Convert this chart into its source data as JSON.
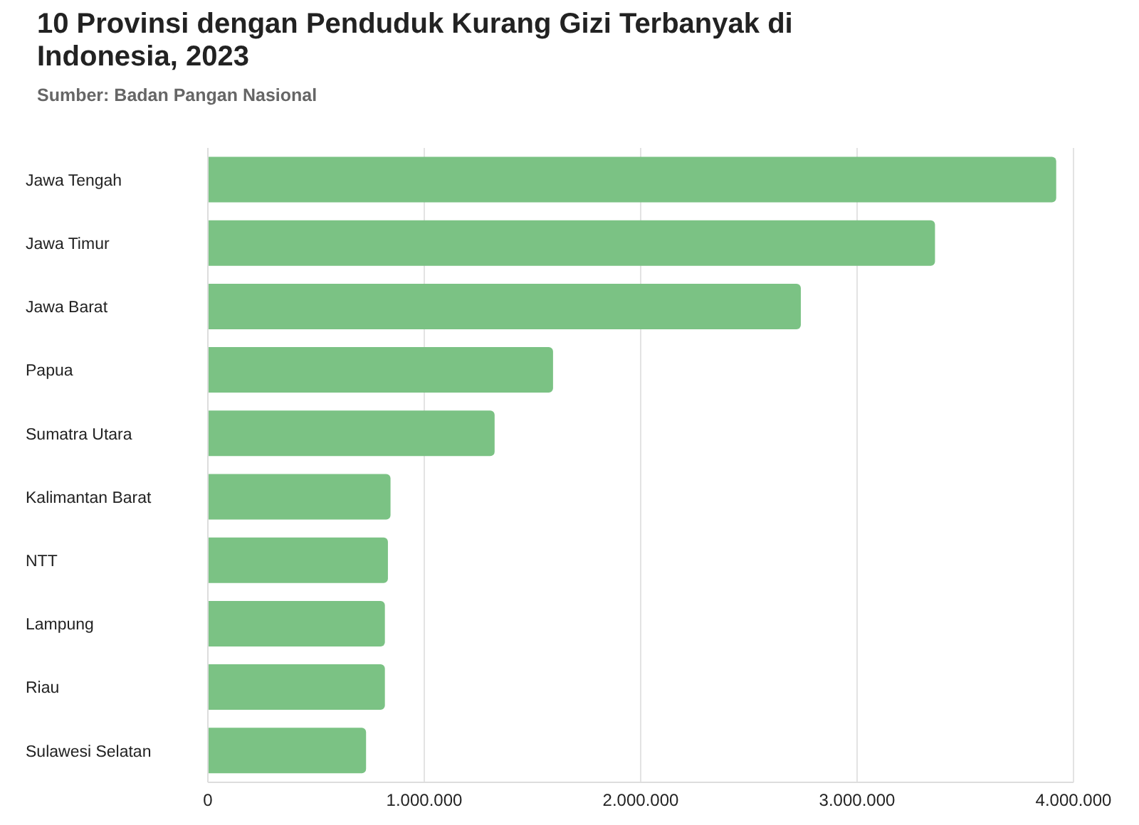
{
  "chart_data": {
    "type": "bar",
    "orientation": "horizontal",
    "title": "10 Provinsi dengan Penduduk Kurang Gizi Terbanyak di Indonesia, 2023",
    "subtitle": "Sumber: Badan Pangan Nasional",
    "categories": [
      "Jawa Tengah",
      "Jawa Timur",
      "Jawa Barat",
      "Papua",
      "Sumatra Utara",
      "Kalimantan Barat",
      "NTT",
      "Lampung",
      "Riau",
      "Sulawesi Selatan"
    ],
    "values": [
      3920000,
      3360000,
      2740000,
      1595000,
      1325000,
      844000,
      832000,
      818000,
      818000,
      731000
    ],
    "color": "#7bc284",
    "xlim": [
      0,
      4000000
    ],
    "xticks": [
      {
        "value": 0,
        "label": "0"
      },
      {
        "value": 1000000,
        "label": "1.000.000"
      },
      {
        "value": 2000000,
        "label": "2.000.000"
      },
      {
        "value": 3000000,
        "label": "3.000.000"
      },
      {
        "value": 4000000,
        "label": "4.000.000"
      }
    ],
    "grid": "x",
    "legend": false
  }
}
